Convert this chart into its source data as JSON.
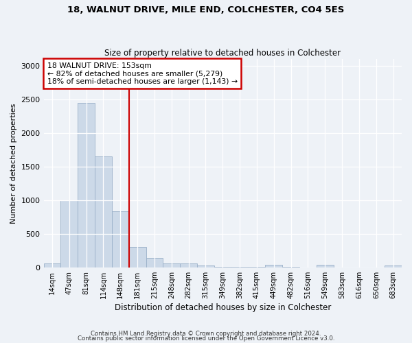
{
  "title1": "18, WALNUT DRIVE, MILE END, COLCHESTER, CO4 5ES",
  "title2": "Size of property relative to detached houses in Colchester",
  "xlabel": "Distribution of detached houses by size in Colchester",
  "ylabel": "Number of detached properties",
  "bar_labels": [
    "14sqm",
    "47sqm",
    "81sqm",
    "114sqm",
    "148sqm",
    "181sqm",
    "215sqm",
    "248sqm",
    "282sqm",
    "315sqm",
    "349sqm",
    "382sqm",
    "415sqm",
    "449sqm",
    "482sqm",
    "516sqm",
    "549sqm",
    "583sqm",
    "616sqm",
    "650sqm",
    "683sqm"
  ],
  "bar_values": [
    60,
    1000,
    2450,
    1650,
    840,
    300,
    145,
    55,
    55,
    30,
    5,
    5,
    5,
    40,
    5,
    0,
    40,
    0,
    0,
    0,
    30
  ],
  "bar_color": "#ccd9e8",
  "bar_edgecolor": "#9ab0c8",
  "vline_color": "#cc0000",
  "annotation_text": "18 WALNUT DRIVE: 153sqm\n← 82% of detached houses are smaller (5,279)\n18% of semi-detached houses are larger (1,143) →",
  "annotation_box_color": "#ffffff",
  "annotation_box_edgecolor": "#cc0000",
  "ylim": [
    0,
    3100
  ],
  "yticks": [
    0,
    500,
    1000,
    1500,
    2000,
    2500,
    3000
  ],
  "footnote1": "Contains HM Land Registry data © Crown copyright and database right 2024.",
  "footnote2": "Contains public sector information licensed under the Open Government Licence v3.0.",
  "background_color": "#eef2f7",
  "plot_background": "#eef2f7"
}
